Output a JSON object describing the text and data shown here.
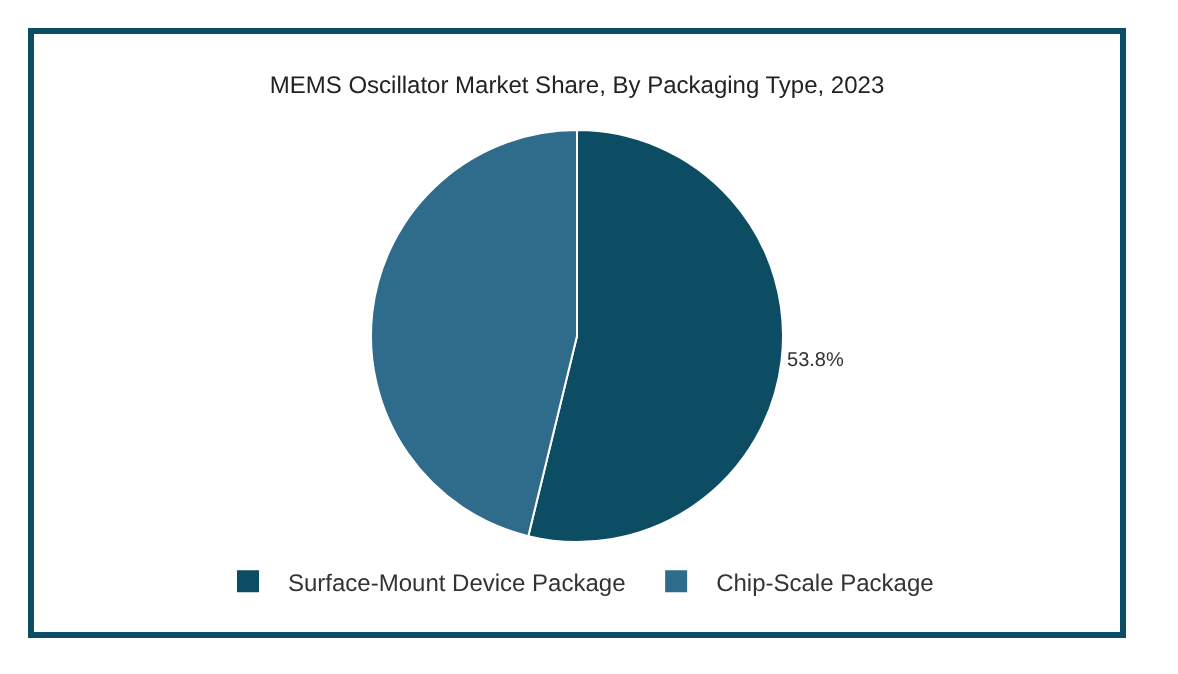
{
  "chart_data": {
    "type": "pie",
    "title": "MEMS Oscillator Market Share, By Packaging Type, 2023",
    "categories": [
      "Surface-Mount Device Package",
      "Chip-Scale Package"
    ],
    "values": [
      53.8,
      46.2
    ],
    "colors": [
      "#0d4d63",
      "#2f6b8b"
    ],
    "value_labels": [
      "53.8%",
      null
    ],
    "legend": "bottom"
  }
}
